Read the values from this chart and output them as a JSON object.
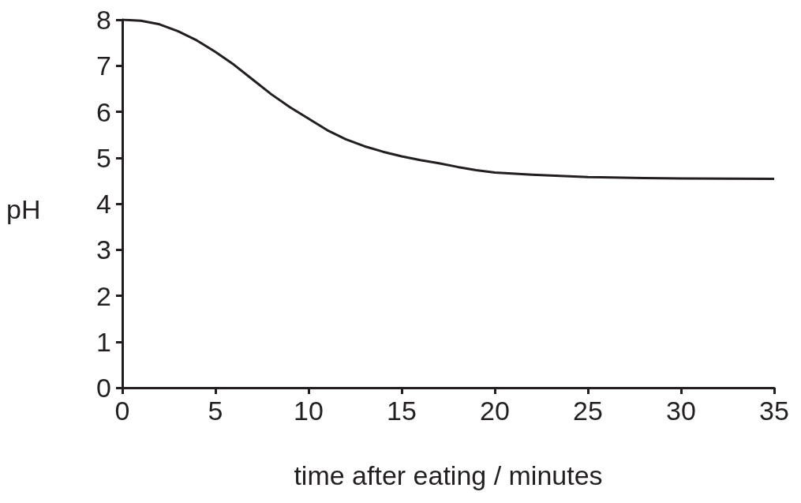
{
  "chart_data": {
    "type": "line",
    "xlabel": "time after eating / minutes",
    "ylabel": "pH",
    "x": [
      0,
      1,
      2,
      3,
      4,
      5,
      6,
      7,
      8,
      9,
      10,
      11,
      12,
      13,
      14,
      15,
      16,
      17,
      18,
      19,
      20,
      22,
      25,
      28,
      30,
      35
    ],
    "series": [
      {
        "color": "#231f20",
        "values": [
          8,
          7.98,
          7.9,
          7.75,
          7.55,
          7.3,
          7.02,
          6.7,
          6.38,
          6.1,
          5.85,
          5.6,
          5.4,
          5.25,
          5.13,
          5.03,
          4.95,
          4.88,
          4.8,
          4.73,
          4.68,
          4.63,
          4.58,
          4.56,
          4.55,
          4.54
        ]
      }
    ],
    "xlim": [
      0,
      35
    ],
    "xticks": [
      0,
      5,
      10,
      15,
      20,
      25,
      30,
      35
    ],
    "ylim": [
      0,
      8
    ],
    "yticks": [
      0,
      1,
      2,
      3,
      4,
      5,
      6,
      7,
      8
    ],
    "grid": false,
    "marker": "none",
    "line_style": "solid"
  }
}
